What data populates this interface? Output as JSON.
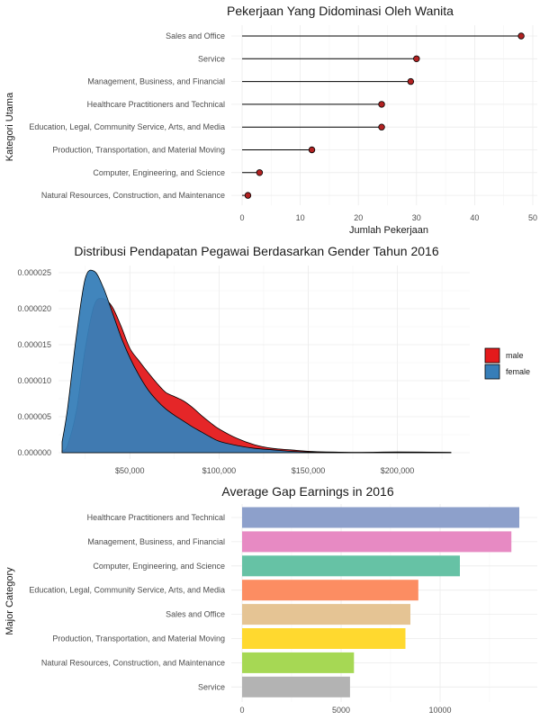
{
  "chart_data": [
    {
      "type": "lollipop",
      "title": "Pekerjaan Yang Didominasi Oleh Wanita",
      "xlabel": "Jumlah Pekerjaan",
      "ylabel": "Kategori Utama",
      "xlim": [
        0,
        50
      ],
      "xticks": [
        0,
        10,
        20,
        30,
        40,
        50
      ],
      "categories": [
        "Sales and Office",
        "Service",
        "Management, Business, and Financial",
        "Healthcare Practitioners and Technical",
        "Education, Legal, Community Service, Arts, and Media",
        "Production, Transportation, and Material Moving",
        "Computer, Engineering, and Science",
        "Natural Resources, Construction, and Maintenance"
      ],
      "values": [
        48,
        30,
        29,
        24,
        24,
        12,
        3,
        1
      ],
      "point_color": "#b22222",
      "grid": true
    },
    {
      "type": "area",
      "title": "Distribusi Pendapatan Pegawai Berdasarkan Gender Tahun 2016",
      "xlabel": "",
      "ylabel": "",
      "xticks": [
        50000,
        100000,
        150000,
        200000
      ],
      "xtick_labels": [
        "$50,000",
        "$100,000",
        "$150,000",
        "$200,000"
      ],
      "yticks": [
        0,
        5e-06,
        1e-05,
        1.5e-05,
        2e-05,
        2.5e-05
      ],
      "ytick_labels": [
        "0.000000",
        "0.000005",
        "0.000010",
        "0.000015",
        "0.000020",
        "0.000025"
      ],
      "xlim": [
        5000,
        240000
      ],
      "ylim": [
        0,
        2.6e-05
      ],
      "legend": {
        "position": "right"
      },
      "series": [
        {
          "name": "male",
          "color": "#e41a1c",
          "x": [
            12000,
            15000,
            20000,
            25000,
            30000,
            35000,
            40000,
            45000,
            50000,
            55000,
            60000,
            65000,
            70000,
            75000,
            80000,
            85000,
            90000,
            95000,
            100000,
            110000,
            120000,
            130000,
            140000,
            150000,
            160000,
            180000,
            200000,
            230000
          ],
          "values": [
            3e-07,
            1e-06,
            5.8e-06,
            1.45e-05,
            2.05e-05,
            2.14e-05,
            2.03e-05,
            1.76e-05,
            1.45e-05,
            1.28e-05,
            1.12e-05,
            9.7e-06,
            8.4e-06,
            7.8e-06,
            7.2e-06,
            6.3e-06,
            5.2e-06,
            4.2e-06,
            3.3e-06,
            2e-06,
            1.1e-06,
            6e-07,
            4e-07,
            2e-07,
            1e-07,
            5e-08,
            1e-07,
            5e-08
          ]
        },
        {
          "name": "female",
          "color": "#377eb8",
          "x": [
            12000,
            15000,
            20000,
            25000,
            30000,
            35000,
            40000,
            45000,
            50000,
            55000,
            60000,
            65000,
            70000,
            75000,
            80000,
            85000,
            90000,
            95000,
            100000,
            110000,
            120000,
            130000,
            140000,
            150000,
            160000,
            180000,
            200000,
            230000
          ],
          "values": [
            1.5e-06,
            6e-06,
            1.62e-05,
            2.42e-05,
            2.52e-05,
            2.3e-05,
            1.96e-05,
            1.61e-05,
            1.32e-05,
            1.08e-05,
            8.8e-06,
            7.3e-06,
            6.1e-06,
            5.2e-06,
            4.4e-06,
            3.6e-06,
            2.9e-06,
            2.2e-06,
            1.6e-06,
            1e-06,
            6e-07,
            4e-07,
            2e-07,
            1e-07,
            5e-08,
            3e-08,
            5e-08,
            3e-08
          ]
        }
      ],
      "grid": true
    },
    {
      "type": "bar",
      "orientation": "horizontal",
      "title": "Average Gap Earnings in 2016",
      "xlabel": "",
      "ylabel": "Major Category",
      "xlim": [
        0,
        14500
      ],
      "xticks": [
        0,
        5000,
        10000
      ],
      "categories": [
        "Healthcare Practitioners and Technical",
        "Management, Business, and Financial",
        "Computer, Engineering, and Science",
        "Education, Legal, Community Service, Arts, and Media",
        "Sales and Office",
        "Production, Transportation, and Material Moving",
        "Natural Resources, Construction, and Maintenance",
        "Service"
      ],
      "values": [
        14000,
        13600,
        11000,
        8900,
        8500,
        8250,
        5650,
        5450
      ],
      "colors": [
        "#8da0cb",
        "#e78ac3",
        "#66c2a5",
        "#fc8d62",
        "#e5c494",
        "#ffd92f",
        "#a6d854",
        "#b3b3b3"
      ],
      "grid": true
    }
  ]
}
